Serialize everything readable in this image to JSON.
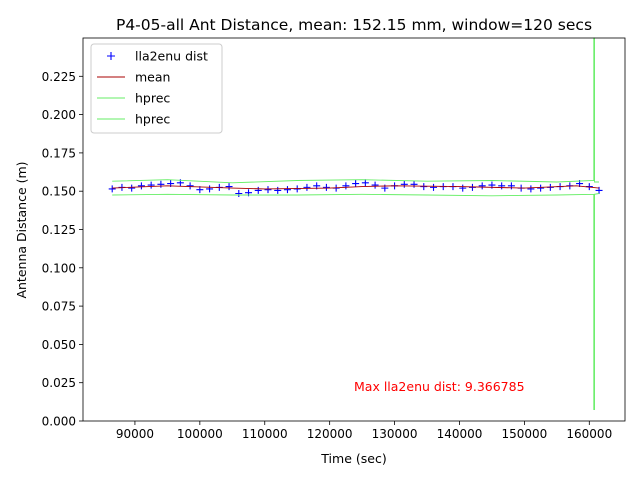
{
  "chart_data": {
    "type": "scatter",
    "title": "P4-05-all Ant Distance, mean: 152.15 mm, window=120 secs",
    "xlabel": "Time (sec)",
    "ylabel": "Antenna Distance (m)",
    "xlim": [
      82000,
      165500
    ],
    "ylim": [
      0.0,
      0.25
    ],
    "xticks": [
      90000,
      100000,
      110000,
      120000,
      130000,
      140000,
      150000,
      160000
    ],
    "xtick_labels": [
      "90000",
      "100000",
      "110000",
      "120000",
      "130000",
      "140000",
      "150000",
      "160000"
    ],
    "yticks": [
      0.0,
      0.025,
      0.05,
      0.075,
      0.1,
      0.125,
      0.15,
      0.175,
      0.2,
      0.225
    ],
    "ytick_labels": [
      "0.000",
      "0.025",
      "0.050",
      "0.075",
      "0.100",
      "0.125",
      "0.150",
      "0.175",
      "0.200",
      "0.225"
    ],
    "grid": false,
    "legend_position": "top-left",
    "annotation": {
      "text": "Max lla2enu dist: 9.366785",
      "x": 124000,
      "y": 0.0205,
      "color": "#ff0000"
    },
    "series": [
      {
        "name": "lla2enu dist",
        "style": "marker-plus",
        "color": "#0000ff",
        "x": [
          86500,
          88000,
          89500,
          91000,
          92500,
          94000,
          95500,
          97000,
          98500,
          100000,
          101500,
          103000,
          104500,
          106000,
          107500,
          109000,
          110500,
          112000,
          113500,
          115000,
          116500,
          118000,
          119500,
          121000,
          122500,
          124000,
          125500,
          127000,
          128500,
          130000,
          131500,
          133000,
          134500,
          136000,
          137500,
          139000,
          140500,
          142000,
          143500,
          145000,
          146500,
          148000,
          149500,
          151000,
          152500,
          154000,
          155500,
          157000,
          158500,
          160000,
          161500
        ],
        "y": [
          0.1515,
          0.1525,
          0.152,
          0.1535,
          0.154,
          0.1545,
          0.155,
          0.1555,
          0.1535,
          0.151,
          0.1515,
          0.1525,
          0.153,
          0.1485,
          0.149,
          0.1505,
          0.151,
          0.1505,
          0.151,
          0.1515,
          0.1525,
          0.1535,
          0.1525,
          0.152,
          0.1535,
          0.155,
          0.1555,
          0.154,
          0.152,
          0.1535,
          0.1545,
          0.1545,
          0.153,
          0.1525,
          0.153,
          0.153,
          0.152,
          0.1525,
          0.1535,
          0.154,
          0.1535,
          0.1535,
          0.152,
          0.1515,
          0.152,
          0.1525,
          0.153,
          0.1535,
          0.155,
          0.153,
          0.1505
        ]
      },
      {
        "name": "mean",
        "style": "line",
        "color": "#aa0000",
        "x": [
          86500,
          95000,
          105000,
          110000,
          120000,
          125000,
          130000,
          140000,
          150000,
          158000,
          161500
        ],
        "y": [
          0.152,
          0.1535,
          0.152,
          0.1515,
          0.152,
          0.153,
          0.1535,
          0.153,
          0.152,
          0.1535,
          0.152
        ]
      },
      {
        "name": "hprec",
        "style": "line",
        "color": "#66ee66",
        "x": [
          86500,
          95000,
          105000,
          115000,
          125000,
          135000,
          145000,
          155000,
          160700,
          160700,
          160800,
          160800,
          161500
        ],
        "y": [
          0.1565,
          0.1575,
          0.1555,
          0.157,
          0.1575,
          0.1565,
          0.157,
          0.156,
          0.157,
          0.25,
          0.25,
          0.156,
          0.156
        ]
      },
      {
        "name": "hprec",
        "style": "line",
        "color": "#66ee66",
        "x": [
          86500,
          95000,
          105000,
          115000,
          125000,
          135000,
          145000,
          155000,
          160700,
          160700,
          160800,
          160800,
          161500
        ],
        "y": [
          0.1475,
          0.148,
          0.1475,
          0.1475,
          0.148,
          0.1475,
          0.147,
          0.1475,
          0.148,
          0.0075,
          0.0075,
          0.148,
          0.1485
        ]
      }
    ]
  }
}
